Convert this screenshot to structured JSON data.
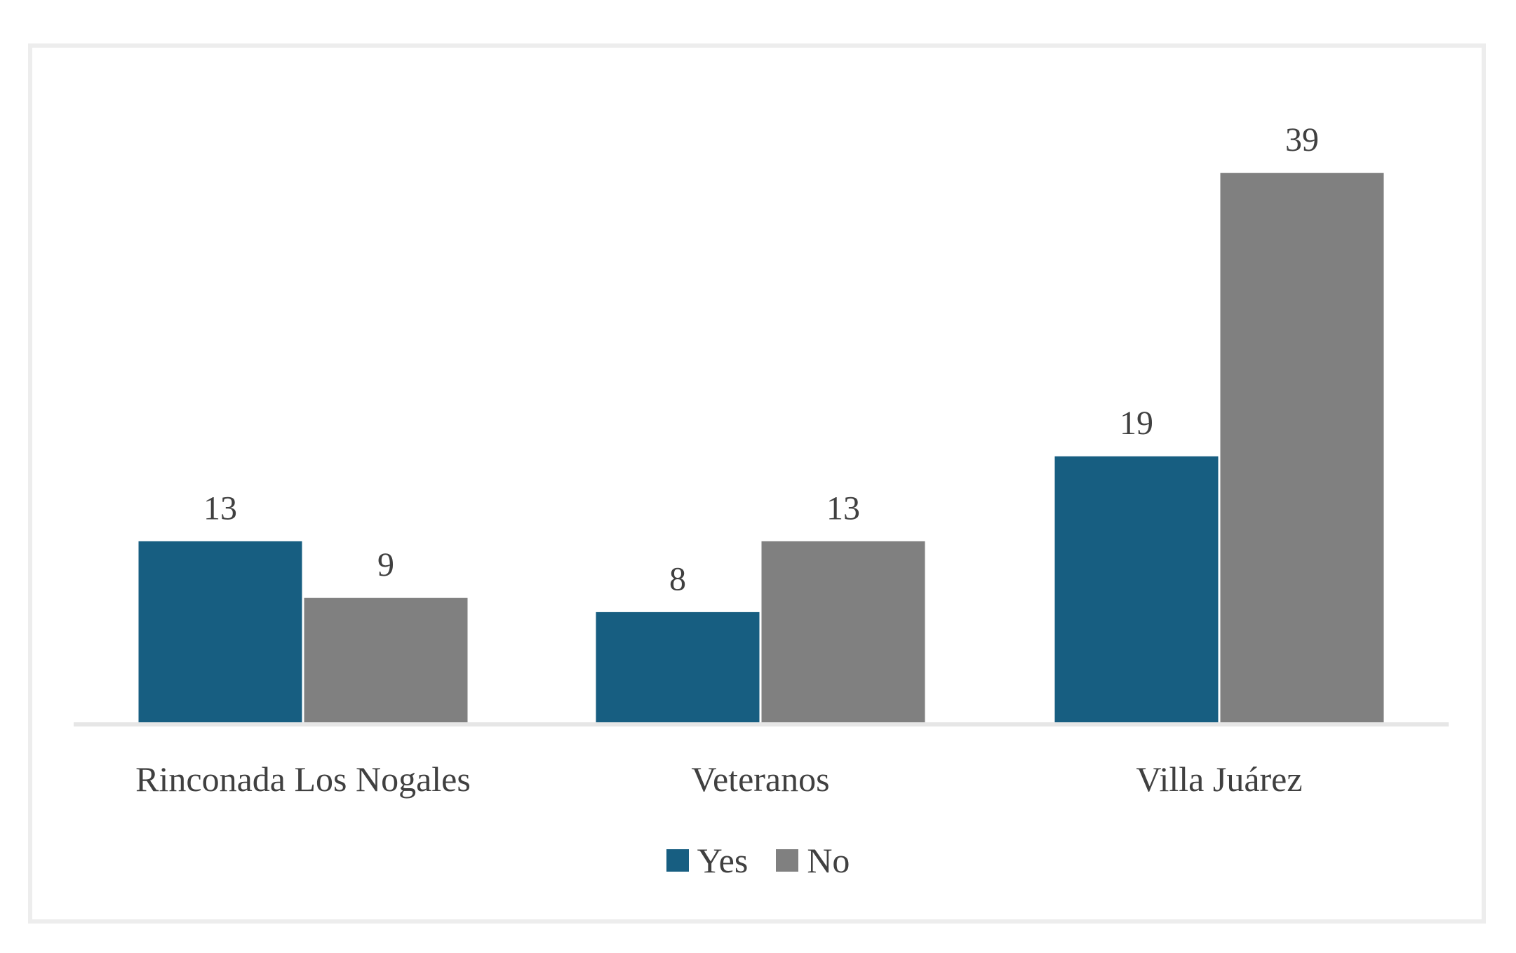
{
  "chart_data": {
    "type": "bar",
    "categories": [
      "Rinconada Los Nogales",
      "Veteranos",
      "Villa Juárez"
    ],
    "series": [
      {
        "name": "Yes",
        "values": [
          13,
          8,
          19
        ],
        "color": "#175e81"
      },
      {
        "name": "No",
        "values": [
          9,
          13,
          39
        ],
        "color": "#808080"
      }
    ],
    "title": "",
    "xlabel": "",
    "ylabel": "",
    "ylim": [
      0,
      39
    ],
    "grid": false,
    "data_labels": true,
    "legend_position": "bottom"
  }
}
